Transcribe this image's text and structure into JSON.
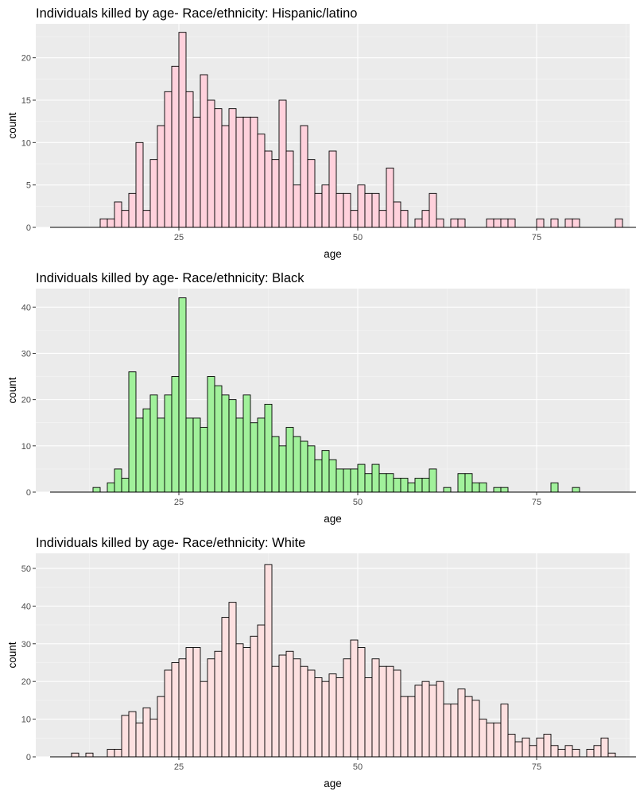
{
  "chart_data": [
    {
      "type": "bar",
      "title": "Individuals killed by age- Race/ethnicity: Hispanic/latino",
      "xlabel": "age",
      "ylabel": "count",
      "xlim": [
        5,
        88
      ],
      "ylim": [
        0,
        24
      ],
      "x_ticks": [
        25,
        50,
        75
      ],
      "y_ticks": [
        0,
        5,
        10,
        15,
        20
      ],
      "x_tick_labels": [
        "25",
        "50",
        "75"
      ],
      "y_tick_labels": [
        "0",
        "5",
        "10",
        "15",
        "20"
      ],
      "grid": true,
      "bin_width": 1,
      "fill_color": "#ffd1dc",
      "edge_color": "#000000",
      "x_start": 7,
      "values": [
        0,
        0,
        0,
        0,
        0,
        0,
        0,
        1,
        1,
        3,
        2,
        4,
        10,
        2,
        8,
        12,
        16,
        19,
        23,
        16,
        13,
        18,
        15,
        14,
        12,
        14,
        13,
        13,
        13,
        11,
        9,
        8,
        15,
        9,
        5,
        12,
        8,
        4,
        5,
        9,
        4,
        4,
        2,
        5,
        4,
        4,
        2,
        7,
        3,
        2,
        0,
        1,
        2,
        4,
        1,
        0,
        1,
        1,
        0,
        0,
        0,
        1,
        1,
        1,
        1,
        0,
        0,
        0,
        1,
        0,
        1,
        0,
        1,
        1,
        0,
        0,
        0,
        0,
        0,
        1,
        0,
        0,
        0,
        0,
        0,
        0,
        0
      ]
    },
    {
      "type": "bar",
      "title": "Individuals killed by age- Race/ethnicity: Black",
      "xlabel": "age",
      "ylabel": "count",
      "xlim": [
        5,
        88
      ],
      "ylim": [
        0,
        44
      ],
      "x_ticks": [
        25,
        50,
        75
      ],
      "y_ticks": [
        0,
        10,
        20,
        30,
        40
      ],
      "x_tick_labels": [
        "25",
        "50",
        "75"
      ],
      "y_tick_labels": [
        "0",
        "10",
        "20",
        "30",
        "40"
      ],
      "grid": true,
      "bin_width": 1,
      "fill_color": "#a1f19b",
      "edge_color": "#000000",
      "x_start": 7,
      "values": [
        0,
        0,
        0,
        0,
        0,
        0,
        1,
        0,
        2,
        5,
        3,
        26,
        16,
        18,
        21,
        16,
        21,
        25,
        42,
        16,
        16,
        14,
        25,
        23,
        21,
        20,
        16,
        21,
        15,
        16,
        19,
        12,
        10,
        14,
        12,
        11,
        10,
        7,
        9,
        7,
        5,
        5,
        5,
        6,
        4,
        6,
        4,
        4,
        3,
        3,
        2,
        3,
        3,
        5,
        0,
        1,
        0,
        4,
        4,
        2,
        2,
        0,
        1,
        1,
        0,
        0,
        0,
        0,
        0,
        0,
        2,
        0,
        0,
        1,
        0,
        0,
        0,
        0,
        0,
        0,
        0,
        0,
        0,
        0,
        0,
        0,
        0
      ]
    },
    {
      "type": "bar",
      "title": "Individuals killed by age- Race/ethnicity: White",
      "xlabel": "age",
      "ylabel": "count",
      "xlim": [
        5,
        88
      ],
      "ylim": [
        0,
        54
      ],
      "x_ticks": [
        25,
        50,
        75
      ],
      "y_ticks": [
        0,
        10,
        20,
        30,
        40,
        50
      ],
      "x_tick_labels": [
        "25",
        "50",
        "75"
      ],
      "y_tick_labels": [
        "0",
        "10",
        "20",
        "30",
        "40",
        "50"
      ],
      "grid": true,
      "bin_width": 1,
      "fill_color": "#fde0e0",
      "edge_color": "#000000",
      "x_start": 7,
      "values": [
        0,
        0,
        0,
        1,
        0,
        1,
        0,
        0,
        2,
        2,
        11,
        12,
        9,
        13,
        10,
        16,
        23,
        25,
        26,
        29,
        29,
        20,
        26,
        28,
        37,
        41,
        30,
        29,
        32,
        35,
        51,
        24,
        27,
        28,
        26,
        24,
        23,
        21,
        20,
        22,
        21,
        26,
        31,
        29,
        21,
        26,
        24,
        24,
        23,
        16,
        16,
        19,
        20,
        19,
        20,
        14,
        14,
        18,
        16,
        15,
        10,
        9,
        9,
        14,
        6,
        4,
        5,
        3,
        5,
        6,
        3,
        2,
        3,
        2,
        0,
        2,
        3,
        5,
        1,
        0,
        0,
        0,
        0,
        1,
        1,
        2,
        1
      ]
    }
  ]
}
